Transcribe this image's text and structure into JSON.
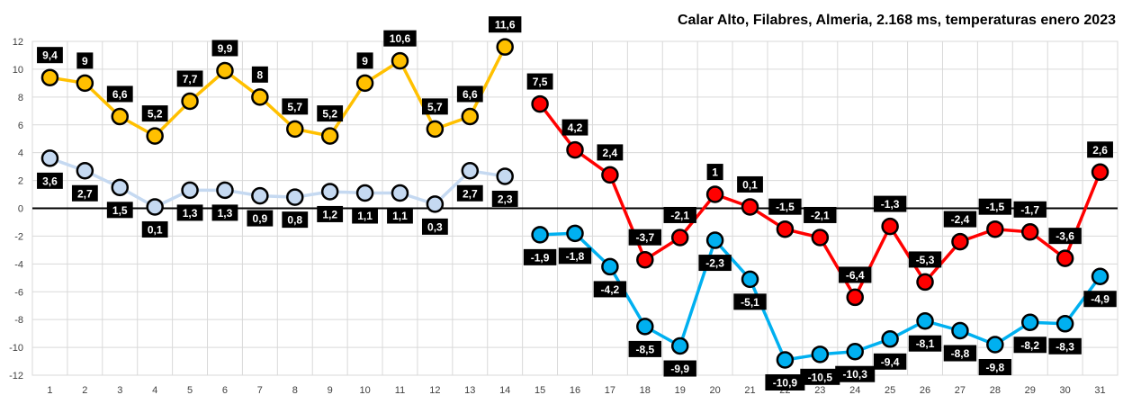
{
  "chart_data": {
    "type": "line",
    "title": "Calar Alto, Filabres, Almeria, 2.168 ms, temperaturas enero 2023",
    "xlabel": "",
    "ylabel": "",
    "ylim": [
      -12,
      12
    ],
    "yticks": [
      -12,
      -10,
      -8,
      -6,
      -4,
      -2,
      0,
      2,
      4,
      6,
      8,
      10,
      12
    ],
    "grid": true,
    "legend": "none",
    "decimal_separator": ",",
    "categories": [
      1,
      2,
      3,
      4,
      5,
      6,
      7,
      8,
      9,
      10,
      11,
      12,
      13,
      14,
      15,
      16,
      17,
      18,
      19,
      20,
      21,
      22,
      23,
      24,
      25,
      26,
      27,
      28,
      29,
      30,
      31
    ],
    "series": [
      {
        "color": "#FFC000",
        "x": [
          1,
          2,
          3,
          4,
          5,
          6,
          7,
          8,
          9,
          10,
          11,
          12,
          13,
          14
        ],
        "values": [
          9.4,
          9,
          6.6,
          5.2,
          7.7,
          9.9,
          8,
          5.7,
          5.2,
          9,
          10.6,
          5.7,
          6.6,
          11.6
        ],
        "label_position": "above"
      },
      {
        "color": "#C5D9F1",
        "x": [
          1,
          2,
          3,
          4,
          5,
          6,
          7,
          8,
          9,
          10,
          11,
          12,
          13,
          14
        ],
        "values": [
          3.6,
          2.7,
          1.5,
          0.1,
          1.3,
          1.3,
          0.9,
          0.8,
          1.2,
          1.1,
          1.1,
          0.3,
          2.7,
          2.3
        ],
        "label_position": "below"
      },
      {
        "color": "#FF0000",
        "x": [
          15,
          16,
          17,
          18,
          19,
          20,
          21,
          22,
          23,
          24,
          25,
          26,
          27,
          28,
          29,
          30,
          31
        ],
        "values": [
          7.5,
          4.2,
          2.4,
          -3.7,
          -2.1,
          1,
          0.1,
          -1.5,
          -2.1,
          -6.4,
          -1.3,
          -5.3,
          -2.4,
          -1.5,
          -1.7,
          -3.6,
          2.6
        ],
        "label_position": "above"
      },
      {
        "color": "#00B0F0",
        "x": [
          15,
          16,
          17,
          18,
          19,
          20,
          21,
          22,
          23,
          24,
          25,
          26,
          27,
          28,
          29,
          30,
          31
        ],
        "values": [
          -1.9,
          -1.8,
          -4.2,
          -8.5,
          -9.9,
          -2.3,
          -5.1,
          -10.9,
          -10.5,
          -10.3,
          -9.4,
          -8.1,
          -8.8,
          -9.8,
          -8.2,
          -8.3,
          -4.9
        ],
        "label_position": "below"
      }
    ]
  }
}
